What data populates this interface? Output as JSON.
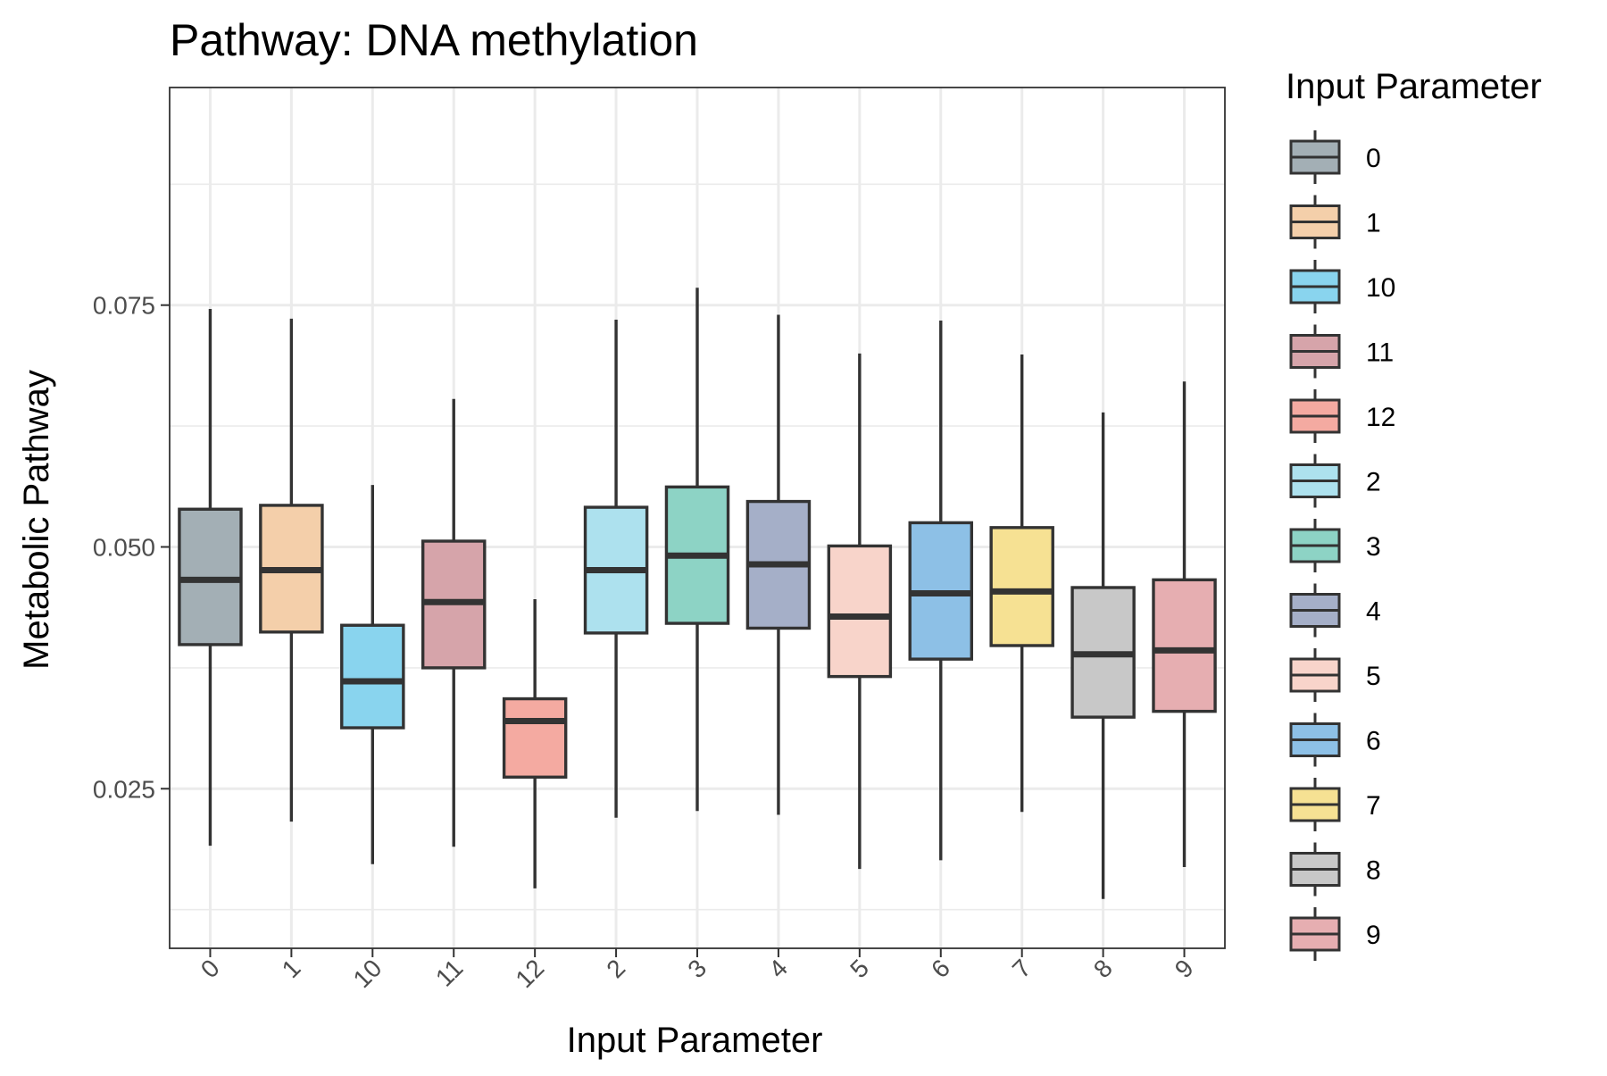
{
  "chart_data": {
    "type": "boxplot",
    "title": "Pathway: DNA methylation",
    "xlabel": "Input Parameter",
    "ylabel": "Metabolic Pathway",
    "ylim": [
      0.0085,
      0.0975
    ],
    "y_ticks": [
      "0.025",
      "0.050",
      "0.075"
    ],
    "y_tick_values": [
      0.025,
      0.05,
      0.075
    ],
    "y_minor_ticks": [
      0.0125,
      0.0375,
      0.0625,
      0.0875
    ],
    "grid": true,
    "legend": {
      "title": "Input Parameter",
      "position": "right"
    },
    "categories": [
      "0",
      "1",
      "10",
      "11",
      "12",
      "2",
      "3",
      "4",
      "5",
      "6",
      "7",
      "8",
      "9"
    ],
    "colors": [
      "#A3AFB5",
      "#F4CFAA",
      "#89D4EE",
      "#D6A4AA",
      "#F4AAA1",
      "#ADE1EE",
      "#8DD3C5",
      "#A5AFC8",
      "#F8D4CA",
      "#8DC0E6",
      "#F6E193",
      "#C8C8C8",
      "#E6AEB1"
    ],
    "boxes": [
      {
        "category": "0",
        "whisker_low": 0.0191,
        "q1": 0.0399,
        "median": 0.0466,
        "q3": 0.0539,
        "whisker_high": 0.0746
      },
      {
        "category": "1",
        "whisker_low": 0.0216,
        "q1": 0.0412,
        "median": 0.0476,
        "q3": 0.0543,
        "whisker_high": 0.0736
      },
      {
        "category": "10",
        "whisker_low": 0.0172,
        "q1": 0.0313,
        "median": 0.0361,
        "q3": 0.0419,
        "whisker_high": 0.0564
      },
      {
        "category": "11",
        "whisker_low": 0.019,
        "q1": 0.0375,
        "median": 0.0443,
        "q3": 0.0506,
        "whisker_high": 0.0653
      },
      {
        "category": "12",
        "whisker_low": 0.0147,
        "q1": 0.0262,
        "median": 0.032,
        "q3": 0.0343,
        "whisker_high": 0.0446
      },
      {
        "category": "2",
        "whisker_low": 0.022,
        "q1": 0.0411,
        "median": 0.0476,
        "q3": 0.0541,
        "whisker_high": 0.0735
      },
      {
        "category": "3",
        "whisker_low": 0.0227,
        "q1": 0.0421,
        "median": 0.0491,
        "q3": 0.0562,
        "whisker_high": 0.0768
      },
      {
        "category": "4",
        "whisker_low": 0.0223,
        "q1": 0.0416,
        "median": 0.0482,
        "q3": 0.0547,
        "whisker_high": 0.074
      },
      {
        "category": "5",
        "whisker_low": 0.0167,
        "q1": 0.0366,
        "median": 0.0428,
        "q3": 0.0501,
        "whisker_high": 0.07
      },
      {
        "category": "6",
        "whisker_low": 0.0176,
        "q1": 0.0384,
        "median": 0.0452,
        "q3": 0.0525,
        "whisker_high": 0.0734
      },
      {
        "category": "7",
        "whisker_low": 0.0226,
        "q1": 0.0398,
        "median": 0.0454,
        "q3": 0.052,
        "whisker_high": 0.0699
      },
      {
        "category": "8",
        "whisker_low": 0.0136,
        "q1": 0.0324,
        "median": 0.0389,
        "q3": 0.0458,
        "whisker_high": 0.0639
      },
      {
        "category": "9",
        "whisker_low": 0.0169,
        "q1": 0.033,
        "median": 0.0393,
        "q3": 0.0466,
        "whisker_high": 0.0671
      }
    ]
  }
}
